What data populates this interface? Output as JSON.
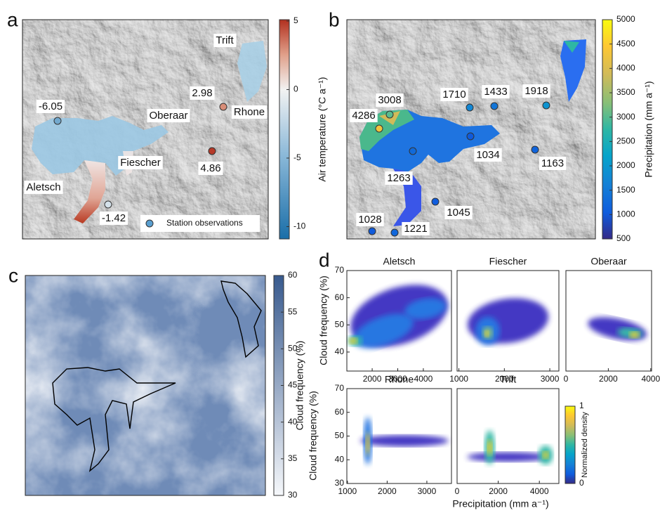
{
  "chart_data": [
    {
      "type": "map",
      "panel_label": "a",
      "labels": [
        "Trift",
        "Oberaar",
        "Rhone",
        "Aletsch",
        "Fiescher"
      ],
      "stations": [
        -6.05,
        2.98,
        4.86,
        -1.42
      ],
      "legend": "Station observations",
      "colorbar": {
        "label": "Air temperature (°C a⁻¹)",
        "lim": [
          -10.9,
          5.1
        ],
        "ticks": [
          5,
          0,
          -5,
          -10
        ]
      }
    },
    {
      "type": "map",
      "panel_label": "b",
      "stations": [
        3008,
        4286,
        1710,
        1433,
        1918,
        1034,
        1163,
        1263,
        1045,
        1028,
        1221
      ],
      "colorbar": {
        "label": "Precipitation (mm a⁻¹)",
        "lim": [
          500,
          5000
        ],
        "ticks": [
          500,
          1000,
          1500,
          2000,
          2500,
          3000,
          3500,
          4000,
          4500,
          5000
        ]
      }
    },
    {
      "type": "map",
      "panel_label": "c",
      "colorbar": {
        "label": "Cloud frequency (%)",
        "lim": [
          30,
          60
        ],
        "ticks": [
          30,
          35,
          40,
          45,
          50,
          55,
          60
        ]
      }
    },
    {
      "type": "density-scatter",
      "panel_label": "d",
      "y_label": "Cloud frequency (%)",
      "x_label": "Precipitation (mm a⁻¹)",
      "colorbar": {
        "label": "Normalized density",
        "lim": [
          0,
          1
        ],
        "ticks": [
          0,
          1
        ]
      },
      "subplots": [
        {
          "title": "Aletsch",
          "xlim": [
            1010,
            5100
          ],
          "xticks": [
            2000,
            3000,
            4000
          ],
          "ylim": [
            33,
            70
          ],
          "yticks": [
            40,
            50,
            60,
            70
          ]
        },
        {
          "title": "Fiescher",
          "xlim": [
            960,
            3200
          ],
          "xticks": [
            1000,
            2000,
            3000
          ],
          "ylim": [
            33,
            70
          ]
        },
        {
          "title": "Oberaar",
          "xlim": [
            0,
            4040
          ],
          "xticks": [
            0,
            2000,
            4000
          ],
          "ylim": [
            33,
            70
          ]
        },
        {
          "title": "Rhone",
          "xlim": [
            985,
            3620
          ],
          "xticks": [
            1000,
            2000,
            3000
          ],
          "ylim": [
            30,
            70
          ],
          "yticks": [
            30,
            40,
            50,
            60,
            70
          ]
        },
        {
          "title": "Trift",
          "xlim": [
            0,
            4950
          ],
          "xticks": [
            0,
            2000,
            4000
          ],
          "ylim": [
            30,
            70
          ]
        }
      ]
    }
  ]
}
